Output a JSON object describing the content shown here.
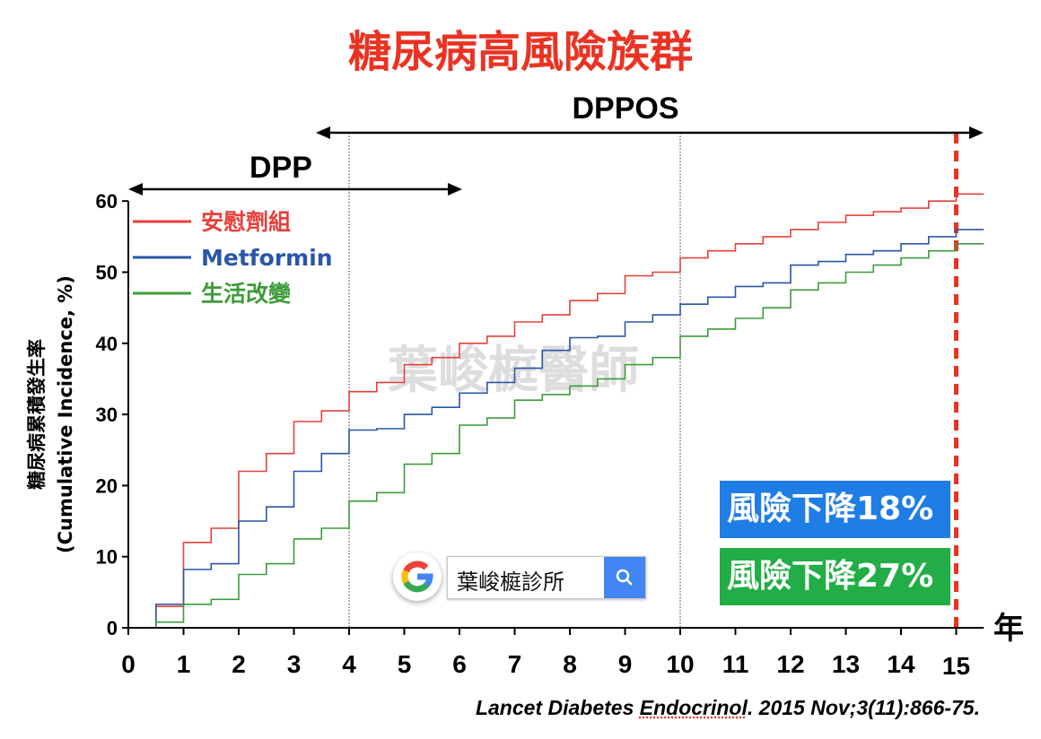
{
  "title": "糖尿病高風險族群",
  "chart_data": {
    "type": "line",
    "step": true,
    "ylabel_line1": "糖尿病累積發生率",
    "ylabel_line2": "(Cumulative Incidence, %)",
    "xlabel": "年",
    "xlim": [
      0,
      15.5
    ],
    "ylim": [
      0,
      60
    ],
    "x_ticks": [
      0,
      1,
      2,
      3,
      4,
      5,
      6,
      7,
      8,
      9,
      10,
      11,
      12,
      13,
      14,
      15
    ],
    "y_ticks": [
      0,
      10,
      20,
      30,
      40,
      50,
      60
    ],
    "highlight_tick": 15,
    "highlight_color": "#ea3323",
    "reference_lines_x": [
      4,
      10
    ],
    "legend_position": "top-left",
    "series": [
      {
        "name": "安慰劑組",
        "color": "#e8403a",
        "points": [
          [
            0,
            0
          ],
          [
            0.5,
            0
          ],
          [
            0.5,
            3
          ],
          [
            1,
            3
          ],
          [
            1,
            12
          ],
          [
            1.5,
            12
          ],
          [
            1.5,
            14
          ],
          [
            2,
            14
          ],
          [
            2,
            22
          ],
          [
            2.5,
            22
          ],
          [
            2.5,
            24.5
          ],
          [
            3,
            24.5
          ],
          [
            3,
            29
          ],
          [
            3.5,
            29
          ],
          [
            3.5,
            30.5
          ],
          [
            4,
            30.5
          ],
          [
            4,
            33.2
          ],
          [
            4.5,
            33.2
          ],
          [
            4.5,
            34.5
          ],
          [
            5,
            34.5
          ],
          [
            5,
            37
          ],
          [
            5.5,
            37
          ],
          [
            5.5,
            38
          ],
          [
            6,
            38
          ],
          [
            6,
            40
          ],
          [
            6.5,
            40
          ],
          [
            6.5,
            41
          ],
          [
            7,
            41
          ],
          [
            7,
            43
          ],
          [
            7.5,
            43
          ],
          [
            7.5,
            44
          ],
          [
            8,
            44
          ],
          [
            8,
            46
          ],
          [
            8.5,
            46
          ],
          [
            8.5,
            47
          ],
          [
            9,
            47
          ],
          [
            9,
            49.5
          ],
          [
            9.5,
            49.5
          ],
          [
            9.5,
            50
          ],
          [
            10,
            50
          ],
          [
            10,
            52
          ],
          [
            10.5,
            52
          ],
          [
            10.5,
            53
          ],
          [
            11,
            53
          ],
          [
            11,
            54
          ],
          [
            11.5,
            54
          ],
          [
            11.5,
            55
          ],
          [
            12,
            55
          ],
          [
            12,
            56
          ],
          [
            12.5,
            56
          ],
          [
            12.5,
            57
          ],
          [
            13,
            57
          ],
          [
            13,
            58
          ],
          [
            13.5,
            58
          ],
          [
            13.5,
            58.5
          ],
          [
            14,
            58.5
          ],
          [
            14,
            59
          ],
          [
            14.5,
            59
          ],
          [
            14.5,
            60
          ],
          [
            15,
            60
          ],
          [
            15,
            61
          ],
          [
            15.5,
            61
          ]
        ]
      },
      {
        "name": "Metformin",
        "color": "#2a56a8",
        "points": [
          [
            0,
            0
          ],
          [
            0.5,
            0
          ],
          [
            0.5,
            3.3
          ],
          [
            1,
            3.3
          ],
          [
            1,
            8.2
          ],
          [
            1.5,
            8.2
          ],
          [
            1.5,
            9
          ],
          [
            2,
            9
          ],
          [
            2,
            15
          ],
          [
            2.5,
            15
          ],
          [
            2.5,
            17
          ],
          [
            3,
            17
          ],
          [
            3,
            22
          ],
          [
            3.5,
            22
          ],
          [
            3.5,
            24.5
          ],
          [
            4,
            24.5
          ],
          [
            4,
            27.8
          ],
          [
            4.5,
            27.8
          ],
          [
            4.5,
            28
          ],
          [
            5,
            28
          ],
          [
            5,
            30
          ],
          [
            5.5,
            30
          ],
          [
            5.5,
            31
          ],
          [
            6,
            31
          ],
          [
            6,
            33
          ],
          [
            6.5,
            33
          ],
          [
            6.5,
            34.5
          ],
          [
            7,
            34.5
          ],
          [
            7,
            36.5
          ],
          [
            7.5,
            36.5
          ],
          [
            7.5,
            39
          ],
          [
            8,
            39
          ],
          [
            8,
            40.8
          ],
          [
            8.5,
            40.8
          ],
          [
            8.5,
            41
          ],
          [
            9,
            41
          ],
          [
            9,
            43
          ],
          [
            9.5,
            43
          ],
          [
            9.5,
            44
          ],
          [
            10,
            44
          ],
          [
            10,
            45.5
          ],
          [
            10.5,
            45.5
          ],
          [
            10.5,
            46.5
          ],
          [
            11,
            46.5
          ],
          [
            11,
            48
          ],
          [
            11.5,
            48
          ],
          [
            11.5,
            48.5
          ],
          [
            12,
            48.5
          ],
          [
            12,
            51
          ],
          [
            12.5,
            51
          ],
          [
            12.5,
            51.5
          ],
          [
            13,
            51.5
          ],
          [
            13,
            52.5
          ],
          [
            13.5,
            52.5
          ],
          [
            13.5,
            53
          ],
          [
            14,
            53
          ],
          [
            14,
            54
          ],
          [
            14.5,
            54
          ],
          [
            14.5,
            55
          ],
          [
            15,
            55
          ],
          [
            15,
            56
          ],
          [
            15.5,
            56
          ]
        ]
      },
      {
        "name": "生活改變",
        "color": "#3e9b3a",
        "points": [
          [
            0,
            0
          ],
          [
            0.5,
            0
          ],
          [
            0.5,
            0.8
          ],
          [
            1,
            0.8
          ],
          [
            1,
            3.3
          ],
          [
            1.5,
            3.3
          ],
          [
            1.5,
            4
          ],
          [
            2,
            4
          ],
          [
            2,
            7.5
          ],
          [
            2.5,
            7.5
          ],
          [
            2.5,
            9
          ],
          [
            3,
            9
          ],
          [
            3,
            12.5
          ],
          [
            3.5,
            12.5
          ],
          [
            3.5,
            14
          ],
          [
            4,
            14
          ],
          [
            4,
            17.8
          ],
          [
            4.5,
            17.8
          ],
          [
            4.5,
            19
          ],
          [
            5,
            19
          ],
          [
            5,
            23
          ],
          [
            5.5,
            23
          ],
          [
            5.5,
            24.5
          ],
          [
            6,
            24.5
          ],
          [
            6,
            28.5
          ],
          [
            6.5,
            28.5
          ],
          [
            6.5,
            29.5
          ],
          [
            7,
            29.5
          ],
          [
            7,
            32
          ],
          [
            7.5,
            32
          ],
          [
            7.5,
            32.8
          ],
          [
            8,
            32.8
          ],
          [
            8,
            34
          ],
          [
            8.5,
            34
          ],
          [
            8.5,
            35
          ],
          [
            9,
            35
          ],
          [
            9,
            37
          ],
          [
            9.5,
            37
          ],
          [
            9.5,
            38
          ],
          [
            10,
            38
          ],
          [
            10,
            41
          ],
          [
            10.5,
            41
          ],
          [
            10.5,
            42
          ],
          [
            11,
            42
          ],
          [
            11,
            43.5
          ],
          [
            11.5,
            43.5
          ],
          [
            11.5,
            45
          ],
          [
            12,
            45
          ],
          [
            12,
            47.5
          ],
          [
            12.5,
            47.5
          ],
          [
            12.5,
            48.5
          ],
          [
            13,
            48.5
          ],
          [
            13,
            50
          ],
          [
            13.5,
            50
          ],
          [
            13.5,
            51
          ],
          [
            14,
            51
          ],
          [
            14,
            52
          ],
          [
            14.5,
            52
          ],
          [
            14.5,
            53
          ],
          [
            15,
            53
          ],
          [
            15,
            54
          ],
          [
            15.5,
            54
          ]
        ]
      }
    ],
    "periods": [
      {
        "label": "DPP",
        "from": 0,
        "to": 6
      },
      {
        "label": "DPPOS",
        "from": 3.5,
        "to": 15.5
      }
    ],
    "annotations": [
      {
        "text": "風險下降18%",
        "color": "#1f7de6"
      },
      {
        "text": "風險下降27%",
        "color": "#22ad46"
      }
    ]
  },
  "watermark": "葉峻榳醫師",
  "search": {
    "text": "葉峻榳診所",
    "logo": "google-g-icon",
    "button_icon": "search-icon"
  },
  "citation": {
    "part1": "Lancet Diabetes ",
    "part2": "Endocrinol",
    "part3": ". 2015 Nov;3(11):866-75."
  }
}
